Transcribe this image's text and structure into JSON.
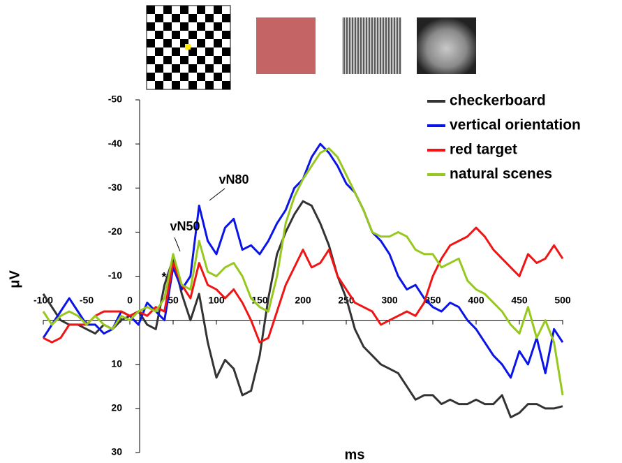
{
  "chart_data": {
    "type": "line",
    "x": [
      -100,
      -90,
      -80,
      -70,
      -60,
      -50,
      -40,
      -30,
      -20,
      -10,
      0,
      10,
      20,
      30,
      40,
      50,
      60,
      70,
      80,
      90,
      100,
      110,
      120,
      130,
      140,
      150,
      160,
      170,
      180,
      190,
      200,
      210,
      220,
      230,
      240,
      250,
      260,
      270,
      280,
      290,
      300,
      310,
      320,
      330,
      340,
      350,
      360,
      370,
      380,
      390,
      400,
      410,
      420,
      430,
      440,
      450,
      460,
      470,
      480,
      490,
      500
    ],
    "series": [
      {
        "name": "checkerboard",
        "color": "#333333",
        "values": [
          -6,
          -3,
          0,
          1,
          1,
          2,
          3,
          1,
          2,
          0,
          -1,
          -2,
          1,
          2,
          -8,
          -14,
          -6,
          0,
          -6,
          5,
          13,
          9,
          11,
          17,
          16,
          8,
          -5,
          -15,
          -20,
          -24,
          -27,
          -26,
          -22,
          -17,
          -10,
          -5,
          2,
          6,
          8,
          10,
          11,
          12,
          15,
          18,
          17,
          17,
          19,
          18,
          19,
          19,
          18,
          19,
          19,
          17,
          22,
          21,
          19,
          19,
          20,
          20,
          19.5
        ]
      },
      {
        "name": "vertical orientation",
        "color": "#0a14e6",
        "values": [
          4,
          1,
          -2,
          -5,
          -2,
          1,
          1,
          3,
          2,
          -2,
          -1,
          1,
          -4,
          -2,
          0,
          -12,
          -7,
          -10,
          -26,
          -18,
          -15,
          -21,
          -23,
          -16,
          -17,
          -15,
          -18,
          -22,
          -25,
          -30,
          -32,
          -37,
          -40,
          -38,
          -35,
          -31,
          -29,
          -25,
          -20,
          -18,
          -15,
          -10,
          -7,
          -8,
          -5,
          -3,
          -2,
          -4,
          -3,
          0,
          2,
          5,
          8,
          10,
          13,
          7,
          10,
          4,
          12,
          2,
          5
        ]
      },
      {
        "name": "red target",
        "color": "#f01414",
        "values": [
          4,
          5,
          4,
          1,
          1,
          1,
          -1,
          -2,
          -2,
          -2,
          -1,
          -2,
          -1,
          -3,
          -2,
          -13,
          -8,
          -5,
          -13,
          -8,
          -7,
          -5,
          -7,
          -4,
          0,
          5,
          4,
          -2,
          -8,
          -12,
          -16,
          -12,
          -13,
          -16,
          -10,
          -7,
          -4,
          -3,
          -2,
          1,
          0,
          -1,
          -2,
          -1,
          -4,
          -10,
          -14,
          -17,
          -18,
          -19,
          -21,
          -19,
          -16,
          -14,
          -12,
          -10,
          -15,
          -13,
          -14,
          -17,
          -14
        ]
      },
      {
        "name": "natural scenes",
        "color": "#96c81e",
        "values": [
          -2,
          1,
          -1,
          -2,
          -1,
          1,
          -1,
          1,
          2,
          -1,
          0,
          -2,
          -3,
          -2,
          -5,
          -15,
          -8,
          -7,
          -18,
          -11,
          -10,
          -12,
          -13,
          -10,
          -5,
          -3,
          -2,
          -10,
          -22,
          -28,
          -32,
          -35,
          -38,
          -39,
          -37,
          -33,
          -29,
          -25,
          -20,
          -19,
          -19,
          -20,
          -19,
          -16,
          -15,
          -15,
          -12,
          -13,
          -14,
          -9,
          -7,
          -6,
          -4,
          -2,
          1,
          3,
          -3,
          4,
          0,
          5,
          17
        ]
      }
    ],
    "xlim": [
      -100,
      500
    ],
    "xticks": [
      -100,
      -50,
      0,
      50,
      100,
      150,
      200,
      250,
      300,
      350,
      400,
      450,
      500
    ],
    "ylim": [
      -50,
      30
    ],
    "yticks": [
      -50,
      -40,
      -30,
      -20,
      -10,
      0,
      10,
      20,
      30
    ],
    "y_reversed": true,
    "xlabel": "ms",
    "ylabel": "μV",
    "legend": "upper right",
    "annotations": [
      "vN80",
      "vN50",
      "*"
    ]
  }
}
